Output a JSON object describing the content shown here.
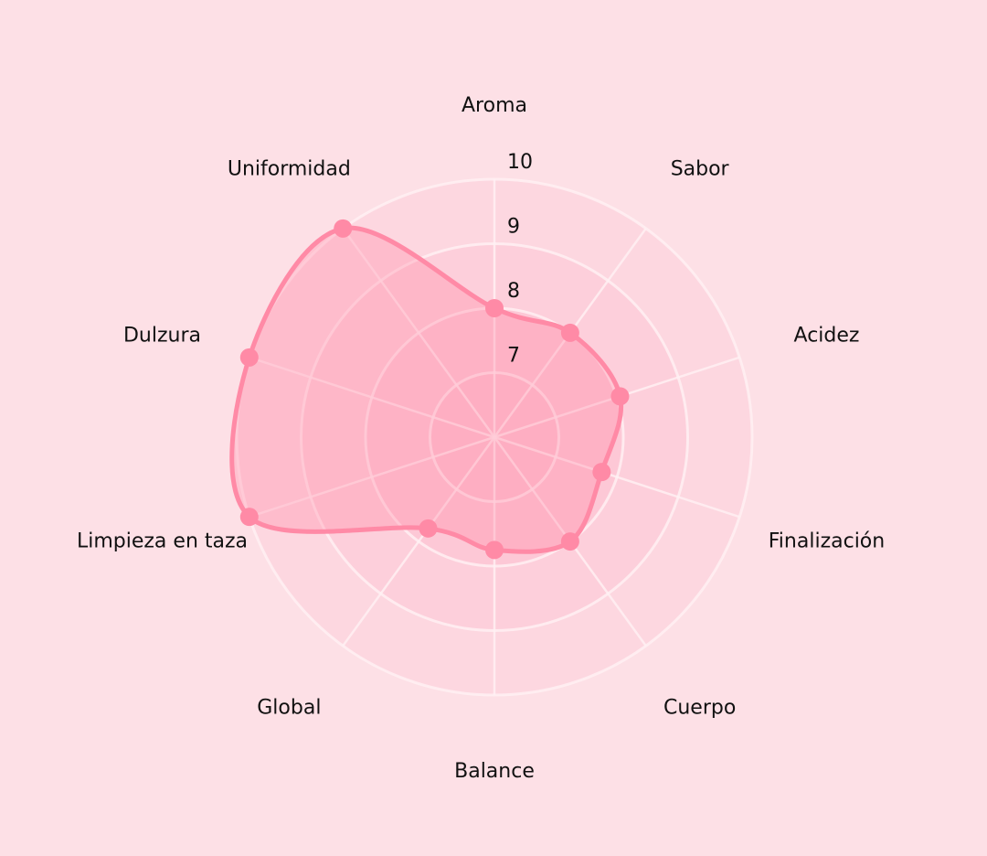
{
  "chart_data": {
    "type": "radar",
    "categories": [
      "Aroma",
      "Sabor",
      "Acidez",
      "Finalización",
      "Cuerpo",
      "Balance",
      "Global",
      "Limpieza en taza",
      "Dulzura",
      "Uniformidad"
    ],
    "values": [
      8,
      8,
      8.05,
      7.75,
      8,
      7.75,
      7.75,
      10,
      10,
      10
    ],
    "rlim": [
      6,
      10
    ],
    "ticks": [
      "7",
      "8",
      "9",
      "10"
    ],
    "tick_values": [
      7,
      8,
      9,
      10
    ],
    "grid": true,
    "colors": {
      "background": "#fde0e6",
      "line": "#ff8aa6",
      "fill": "#ff8aa6",
      "grid": "#fff1f4"
    }
  }
}
